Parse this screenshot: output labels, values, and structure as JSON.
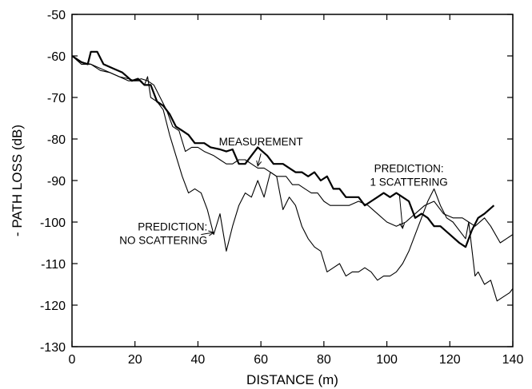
{
  "chart_data": {
    "type": "line",
    "xlabel": "DISTANCE (m)",
    "ylabel": "- PATH LOSS (dB)",
    "xlim": [
      0,
      140
    ],
    "ylim": [
      -130,
      -50
    ],
    "xticks": [
      0,
      20,
      40,
      60,
      80,
      100,
      120,
      140
    ],
    "yticks": [
      -50,
      -60,
      -70,
      -80,
      -90,
      -100,
      -110,
      -120,
      -130
    ],
    "grid": false,
    "series": [
      {
        "name": "MEASUREMENT",
        "style": "thick",
        "color": "#000000",
        "points": [
          [
            0,
            -60
          ],
          [
            3,
            -61.5
          ],
          [
            5,
            -62
          ],
          [
            6,
            -59
          ],
          [
            8,
            -59
          ],
          [
            10,
            -62
          ],
          [
            13,
            -63
          ],
          [
            16,
            -64
          ],
          [
            19,
            -66
          ],
          [
            21,
            -65.5
          ],
          [
            23,
            -67
          ],
          [
            25,
            -67
          ],
          [
            27,
            -71
          ],
          [
            29,
            -72
          ],
          [
            31,
            -74
          ],
          [
            33,
            -77
          ],
          [
            35,
            -78
          ],
          [
            37,
            -79
          ],
          [
            39,
            -81
          ],
          [
            42,
            -81
          ],
          [
            44,
            -82
          ],
          [
            47,
            -82.5
          ],
          [
            49,
            -83
          ],
          [
            51,
            -82.5
          ],
          [
            53,
            -86
          ],
          [
            55,
            -86
          ],
          [
            57,
            -84
          ],
          [
            59,
            -82
          ],
          [
            62,
            -84
          ],
          [
            64,
            -86
          ],
          [
            67,
            -86
          ],
          [
            69,
            -87
          ],
          [
            71,
            -88
          ],
          [
            73,
            -88
          ],
          [
            75,
            -89
          ],
          [
            77,
            -88
          ],
          [
            79,
            -90
          ],
          [
            81,
            -89
          ],
          [
            83,
            -92
          ],
          [
            85,
            -92
          ],
          [
            87,
            -94
          ],
          [
            89,
            -94
          ],
          [
            91,
            -94
          ],
          [
            93,
            -96
          ],
          [
            95,
            -95
          ],
          [
            97,
            -94
          ],
          [
            99,
            -93
          ],
          [
            101,
            -94
          ],
          [
            103,
            -93
          ],
          [
            105,
            -94
          ],
          [
            107,
            -95
          ],
          [
            109,
            -99
          ],
          [
            111,
            -98
          ],
          [
            113,
            -99
          ],
          [
            115,
            -101
          ],
          [
            117,
            -101
          ],
          [
            120,
            -103
          ],
          [
            123,
            -105
          ],
          [
            125,
            -106
          ],
          [
            127,
            -102
          ],
          [
            129,
            -99
          ],
          [
            131,
            -98
          ],
          [
            134,
            -96
          ]
        ]
      },
      {
        "name": "PREDICTION: 1 SCATTERING",
        "style": "thin",
        "color": "#000000",
        "points": [
          [
            0,
            -60
          ],
          [
            3,
            -61.5
          ],
          [
            6,
            -62
          ],
          [
            9,
            -63.5
          ],
          [
            12,
            -64
          ],
          [
            15,
            -65
          ],
          [
            18,
            -66
          ],
          [
            20,
            -66
          ],
          [
            22,
            -65.5
          ],
          [
            24,
            -66
          ],
          [
            26,
            -67
          ],
          [
            28,
            -70
          ],
          [
            30,
            -73
          ],
          [
            32,
            -77
          ],
          [
            34,
            -78
          ],
          [
            36,
            -83
          ],
          [
            38,
            -82
          ],
          [
            40,
            -82
          ],
          [
            42,
            -83
          ],
          [
            45,
            -84
          ],
          [
            47,
            -85
          ],
          [
            49,
            -86
          ],
          [
            51,
            -86
          ],
          [
            53,
            -85
          ],
          [
            55,
            -85
          ],
          [
            57,
            -86
          ],
          [
            59,
            -87
          ],
          [
            61,
            -87
          ],
          [
            63,
            -88
          ],
          [
            65,
            -89
          ],
          [
            68,
            -89
          ],
          [
            70,
            -91
          ],
          [
            72,
            -91
          ],
          [
            74,
            -92
          ],
          [
            76,
            -93
          ],
          [
            78,
            -93
          ],
          [
            80,
            -95
          ],
          [
            82,
            -96
          ],
          [
            85,
            -96
          ],
          [
            88,
            -96
          ],
          [
            91,
            -95
          ],
          [
            94,
            -96
          ],
          [
            97,
            -98
          ],
          [
            100,
            -100
          ],
          [
            103,
            -101
          ],
          [
            106,
            -100
          ],
          [
            109,
            -98
          ],
          [
            112,
            -96
          ],
          [
            115,
            -95
          ],
          [
            118,
            -98
          ],
          [
            121,
            -99
          ],
          [
            124,
            -99
          ],
          [
            126,
            -100
          ],
          [
            128,
            -101
          ],
          [
            131,
            -99
          ],
          [
            133,
            -101
          ],
          [
            136,
            -105
          ],
          [
            138,
            -104
          ],
          [
            140,
            -103
          ]
        ]
      },
      {
        "name": "PREDICTION: NO SCATTERING",
        "style": "thin",
        "color": "#000000",
        "points": [
          [
            0,
            -60
          ],
          [
            3,
            -62
          ],
          [
            6,
            -62
          ],
          [
            9,
            -63
          ],
          [
            12,
            -64
          ],
          [
            15,
            -65
          ],
          [
            18,
            -65.5
          ],
          [
            20,
            -66
          ],
          [
            22,
            -66
          ],
          [
            23,
            -67
          ],
          [
            24,
            -65
          ],
          [
            25,
            -70
          ],
          [
            27,
            -71
          ],
          [
            29,
            -73
          ],
          [
            31,
            -79
          ],
          [
            33,
            -84
          ],
          [
            35,
            -89
          ],
          [
            37,
            -93
          ],
          [
            39,
            -92
          ],
          [
            41,
            -93
          ],
          [
            43,
            -97
          ],
          [
            45,
            -103
          ],
          [
            47,
            -98
          ],
          [
            49,
            -107
          ],
          [
            51,
            -101
          ],
          [
            53,
            -96
          ],
          [
            55,
            -93
          ],
          [
            57,
            -94
          ],
          [
            59,
            -90
          ],
          [
            61,
            -94
          ],
          [
            63,
            -88
          ],
          [
            65,
            -89
          ],
          [
            67,
            -97
          ],
          [
            69,
            -94
          ],
          [
            71,
            -96
          ],
          [
            73,
            -101
          ],
          [
            75,
            -104
          ],
          [
            77,
            -106
          ],
          [
            79,
            -107
          ],
          [
            81,
            -112
          ],
          [
            83,
            -111
          ],
          [
            85,
            -110
          ],
          [
            87,
            -113
          ],
          [
            89,
            -112
          ],
          [
            91,
            -112
          ],
          [
            93,
            -111
          ],
          [
            95,
            -112
          ],
          [
            97,
            -114
          ],
          [
            99,
            -113
          ],
          [
            101,
            -113
          ],
          [
            103,
            -112
          ],
          [
            105,
            -110
          ],
          [
            107,
            -107
          ],
          [
            109,
            -103
          ],
          [
            111,
            -99
          ],
          [
            113,
            -95
          ],
          [
            115,
            -92
          ],
          [
            117,
            -96
          ],
          [
            119,
            -99
          ],
          [
            121,
            -100
          ],
          [
            123,
            -102
          ],
          [
            125,
            -104
          ],
          [
            126,
            -100
          ],
          [
            128,
            -113
          ],
          [
            129,
            -112
          ],
          [
            131,
            -115
          ],
          [
            133,
            -114
          ],
          [
            135,
            -119
          ],
          [
            137,
            -118
          ],
          [
            139,
            -117
          ],
          [
            140,
            -116
          ]
        ]
      }
    ],
    "annotations": [
      {
        "lines": [
          "MEASUREMENT"
        ],
        "anchor": "middle",
        "text_x": 60,
        "text_y": -81.5,
        "arrow_from": [
          60,
          -83.5
        ],
        "arrow_to": [
          59,
          -86.5
        ]
      },
      {
        "lines": [
          "PREDICTION:",
          "1 SCATTERING"
        ],
        "anchor": "middle",
        "text_x": 107,
        "text_y": -88,
        "arrow_from": [
          104,
          -93.5
        ],
        "arrow_to": [
          105,
          -101.5
        ]
      },
      {
        "lines": [
          "PREDICTION:",
          "NO SCATTERING"
        ],
        "anchor": "end",
        "text_x": 43,
        "text_y": -102,
        "arrow_from": [
          41,
          -103
        ],
        "arrow_to": [
          45,
          -102.5
        ]
      }
    ]
  }
}
